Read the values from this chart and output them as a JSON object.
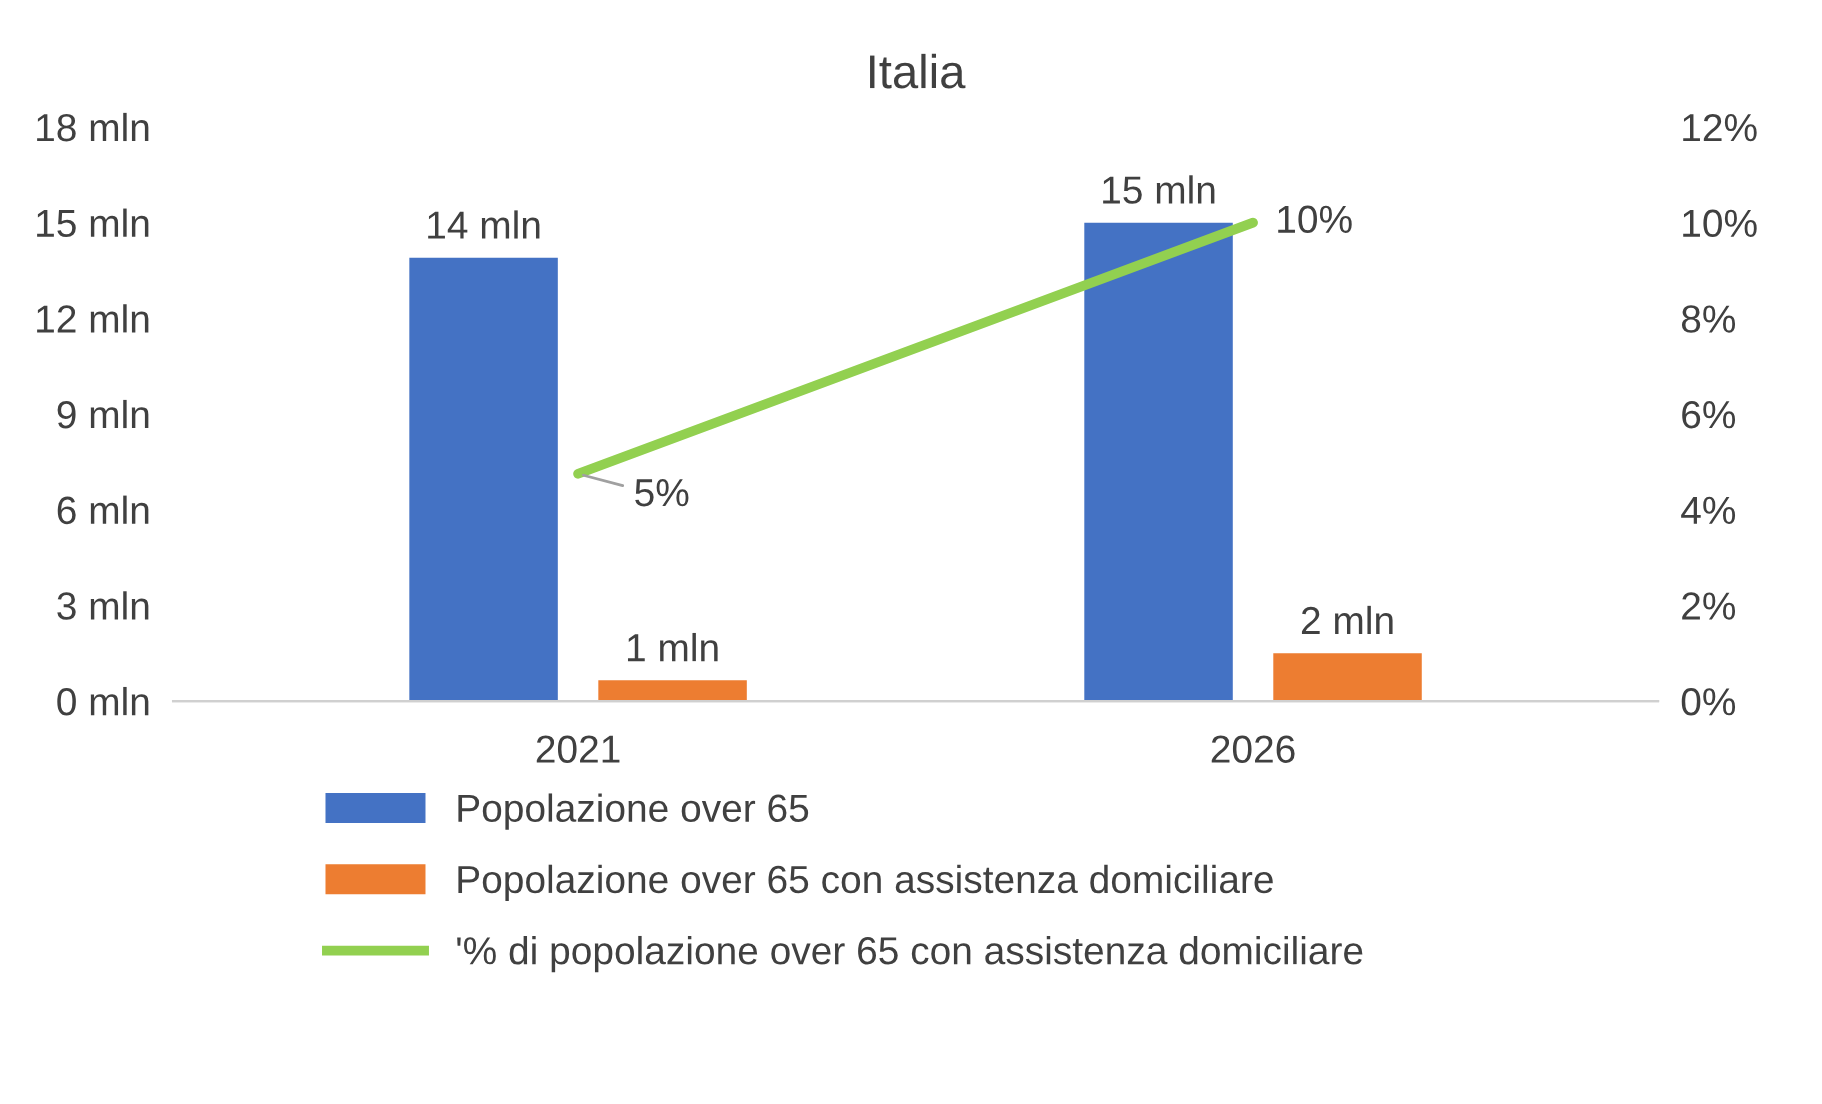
{
  "chart_data": {
    "type": "bar",
    "title": "Italia",
    "categories": [
      "2021",
      "2026"
    ],
    "series": [
      {
        "name": "Popolazione over 65",
        "color": "#4472c4",
        "values": [
          13.9,
          15
        ],
        "value_labels": [
          "14 mln",
          "15 mln"
        ]
      },
      {
        "name": "Popolazione over 65 con assistenza domiciliare",
        "color": "#ed7d31",
        "values": [
          0.65,
          1.5
        ],
        "value_labels": [
          "1 mln",
          "2 mln"
        ]
      },
      {
        "name": "'% di popolazione over 65 con assistenza domiciliare",
        "type": "line",
        "axis": "y2",
        "color": "#92d050",
        "values": [
          4.75,
          10
        ],
        "value_labels": [
          "5%",
          "10%"
        ]
      }
    ],
    "ylim": [
      0,
      18
    ],
    "yticks": [
      {
        "value": 0,
        "label": "0 mln"
      },
      {
        "value": 3,
        "label": "3 mln"
      },
      {
        "value": 6,
        "label": "6 mln"
      },
      {
        "value": 9,
        "label": "9 mln"
      },
      {
        "value": 12,
        "label": "12 mln"
      },
      {
        "value": 15,
        "label": "15 mln"
      },
      {
        "value": 18,
        "label": "18 mln"
      }
    ],
    "y2lim": [
      0,
      12
    ],
    "y2ticks": [
      {
        "value": 0,
        "label": "0%"
      },
      {
        "value": 2,
        "label": "2%"
      },
      {
        "value": 4,
        "label": "4%"
      },
      {
        "value": 6,
        "label": "6%"
      },
      {
        "value": 8,
        "label": "8%"
      },
      {
        "value": 10,
        "label": "10%"
      },
      {
        "value": 12,
        "label": "12%"
      }
    ],
    "grid": false,
    "legend": "bottom"
  }
}
